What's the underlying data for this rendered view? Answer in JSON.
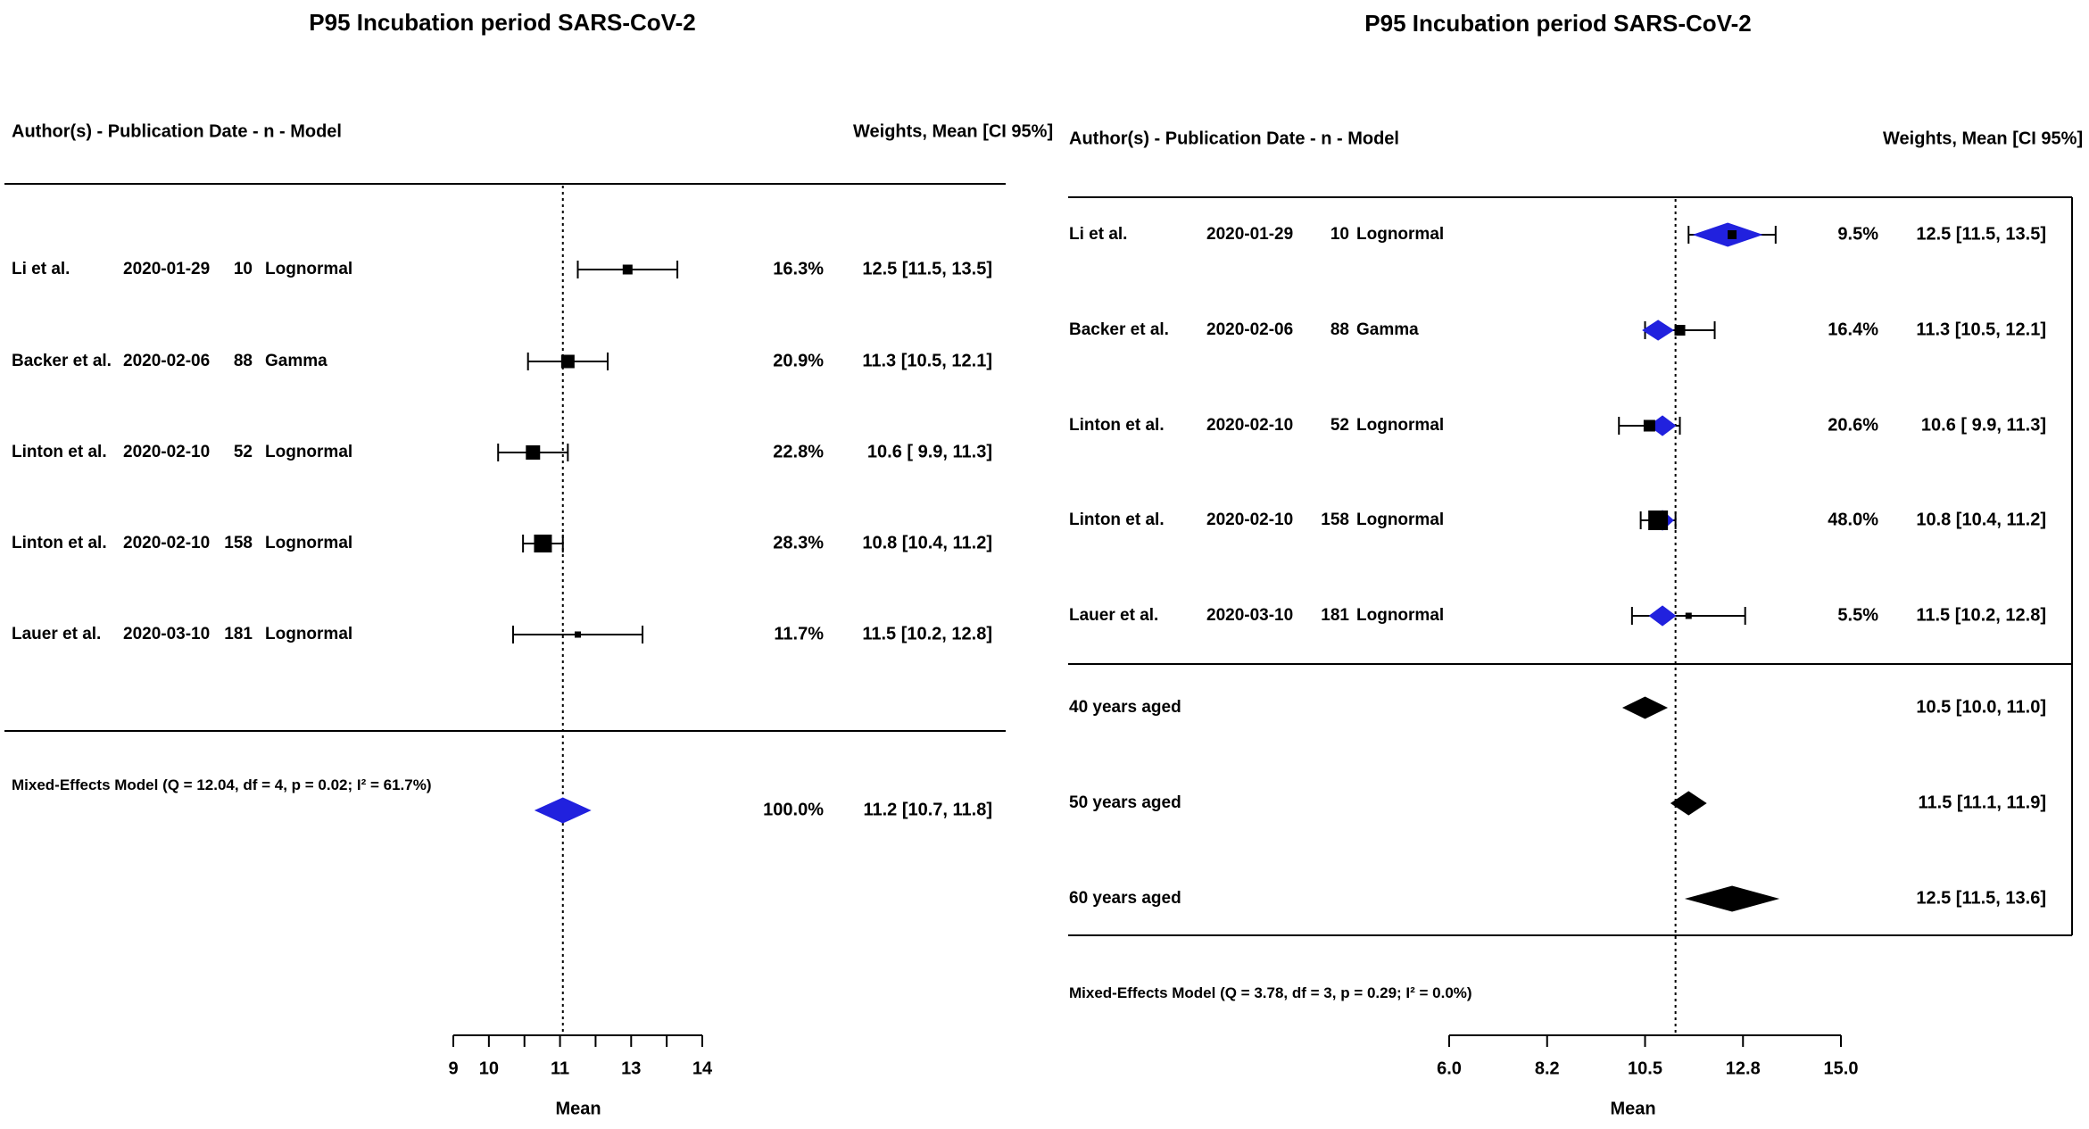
{
  "colors": {
    "marker_black": "#000000",
    "diamond_blue": "#2121de",
    "background": "#ffffff"
  },
  "chart_data": [
    {
      "type": "forest",
      "panel": "left",
      "title": "P95 Incubation period SARS-CoV-2",
      "header_left": "Author(s) - Publication Date -  n - Model",
      "header_right": "Weights, Mean [CI 95%]",
      "studies": [
        {
          "author": "Li et al.",
          "date": "2020-01-29",
          "n": "10",
          "model": "Lognormal",
          "weight": "16.3%",
          "mean": 12.5,
          "ci": [
            11.5,
            13.5
          ],
          "ci_text": "12.5 [11.5, 13.5]"
        },
        {
          "author": "Backer et al.",
          "date": "2020-02-06",
          "n": "88",
          "model": "Gamma",
          "weight": "20.9%",
          "mean": 11.3,
          "ci": [
            10.5,
            12.1
          ],
          "ci_text": "11.3 [10.5, 12.1]"
        },
        {
          "author": "Linton et al.",
          "date": "2020-02-10",
          "n": "52",
          "model": "Lognormal",
          "weight": "22.8%",
          "mean": 10.6,
          "ci": [
            9.9,
            11.3
          ],
          "ci_text": "10.6 [ 9.9, 11.3]"
        },
        {
          "author": "Linton et al.",
          "date": "2020-02-10",
          "n": "158",
          "model": "Lognormal",
          "weight": "28.3%",
          "mean": 10.8,
          "ci": [
            10.4,
            11.2
          ],
          "ci_text": "10.8 [10.4, 11.2]"
        },
        {
          "author": "Lauer et al.",
          "date": "2020-03-10",
          "n": "181",
          "model": "Lognormal",
          "weight": "11.7%",
          "mean": 11.5,
          "ci": [
            10.2,
            12.8
          ],
          "ci_text": "11.5 [10.2, 12.8]"
        }
      ],
      "subgroups": [],
      "summary": {
        "label": "Mixed-Effects Model (Q = 12.04, df = 4, p = 0.02; I² = 61.7%)",
        "weight": "100.0%",
        "mean": 11.2,
        "ci": [
          10.7,
          11.8
        ],
        "ci_text": "11.2 [10.7, 11.8]"
      },
      "axis": {
        "xlabel": "Mean",
        "xlim": [
          9,
          14
        ],
        "tick_labels": [
          "9",
          "10",
          "",
          "11",
          "",
          "13",
          "",
          "14"
        ],
        "reference_line": 11.2
      }
    },
    {
      "type": "forest",
      "panel": "right",
      "title": "P95 Incubation period SARS-CoV-2",
      "header_left": "Author(s) - Publication Date -  n - Model",
      "header_right": "Weights, Mean [CI 95%]",
      "studies": [
        {
          "author": "Li et al.",
          "date": "2020-01-29",
          "n": "10",
          "model": "Lognormal",
          "weight": "9.5%",
          "mean": 12.5,
          "ci": [
            11.5,
            13.5
          ],
          "ci_text": "12.5 [11.5, 13.5]",
          "blup": 12.4,
          "blup_ci": [
            11.62,
            13.18
          ]
        },
        {
          "author": "Backer et al.",
          "date": "2020-02-06",
          "n": "88",
          "model": "Gamma",
          "weight": "16.4%",
          "mean": 11.3,
          "ci": [
            10.5,
            12.1
          ],
          "ci_text": "11.3 [10.5, 12.1]",
          "blup": 10.8,
          "blup_ci": [
            10.45,
            11.15
          ]
        },
        {
          "author": "Linton et al.",
          "date": "2020-02-10",
          "n": "52",
          "model": "Lognormal",
          "weight": "20.6%",
          "mean": 10.6,
          "ci": [
            9.9,
            11.3
          ],
          "ci_text": "10.6 [ 9.9, 11.3]",
          "blup": 10.9,
          "blup_ci": [
            10.6,
            11.2
          ]
        },
        {
          "author": "Linton et al.",
          "date": "2020-02-10",
          "n": "158",
          "model": "Lognormal",
          "weight": "48.0%",
          "mean": 10.8,
          "ci": [
            10.4,
            11.2
          ],
          "ci_text": "10.8 [10.4, 11.2]",
          "blup": 10.9,
          "blup_ci": [
            10.65,
            11.15
          ]
        },
        {
          "author": "Lauer et al.",
          "date": "2020-03-10",
          "n": "181",
          "model": "Lognormal",
          "weight": "5.5%",
          "mean": 11.5,
          "ci": [
            10.2,
            12.8
          ],
          "ci_text": "11.5 [10.2, 12.8]",
          "blup": 10.9,
          "blup_ci": [
            10.6,
            11.2
          ]
        }
      ],
      "subgroups": [
        {
          "label": "40 years aged",
          "mean": 10.5,
          "ci": [
            10.0,
            11.0
          ],
          "ci_text": "10.5 [10.0, 11.0]"
        },
        {
          "label": "50 years aged",
          "mean": 11.5,
          "ci": [
            11.1,
            11.9
          ],
          "ci_text": "11.5 [11.1, 11.9]"
        },
        {
          "label": "60 years aged",
          "mean": 12.5,
          "ci": [
            11.5,
            13.6
          ],
          "ci_text": "12.5 [11.5, 13.6]"
        }
      ],
      "summary": {
        "label": "Mixed-Effects Model (Q = 3.78, df = 3, p = 0.29; I² = 0.0%)"
      },
      "axis": {
        "xlabel": "Mean",
        "xlim": [
          6,
          15
        ],
        "tick_labels": [
          "6.0",
          "8.2",
          "10.5",
          "12.8",
          "15.0"
        ],
        "reference_line": 11.2
      }
    }
  ]
}
